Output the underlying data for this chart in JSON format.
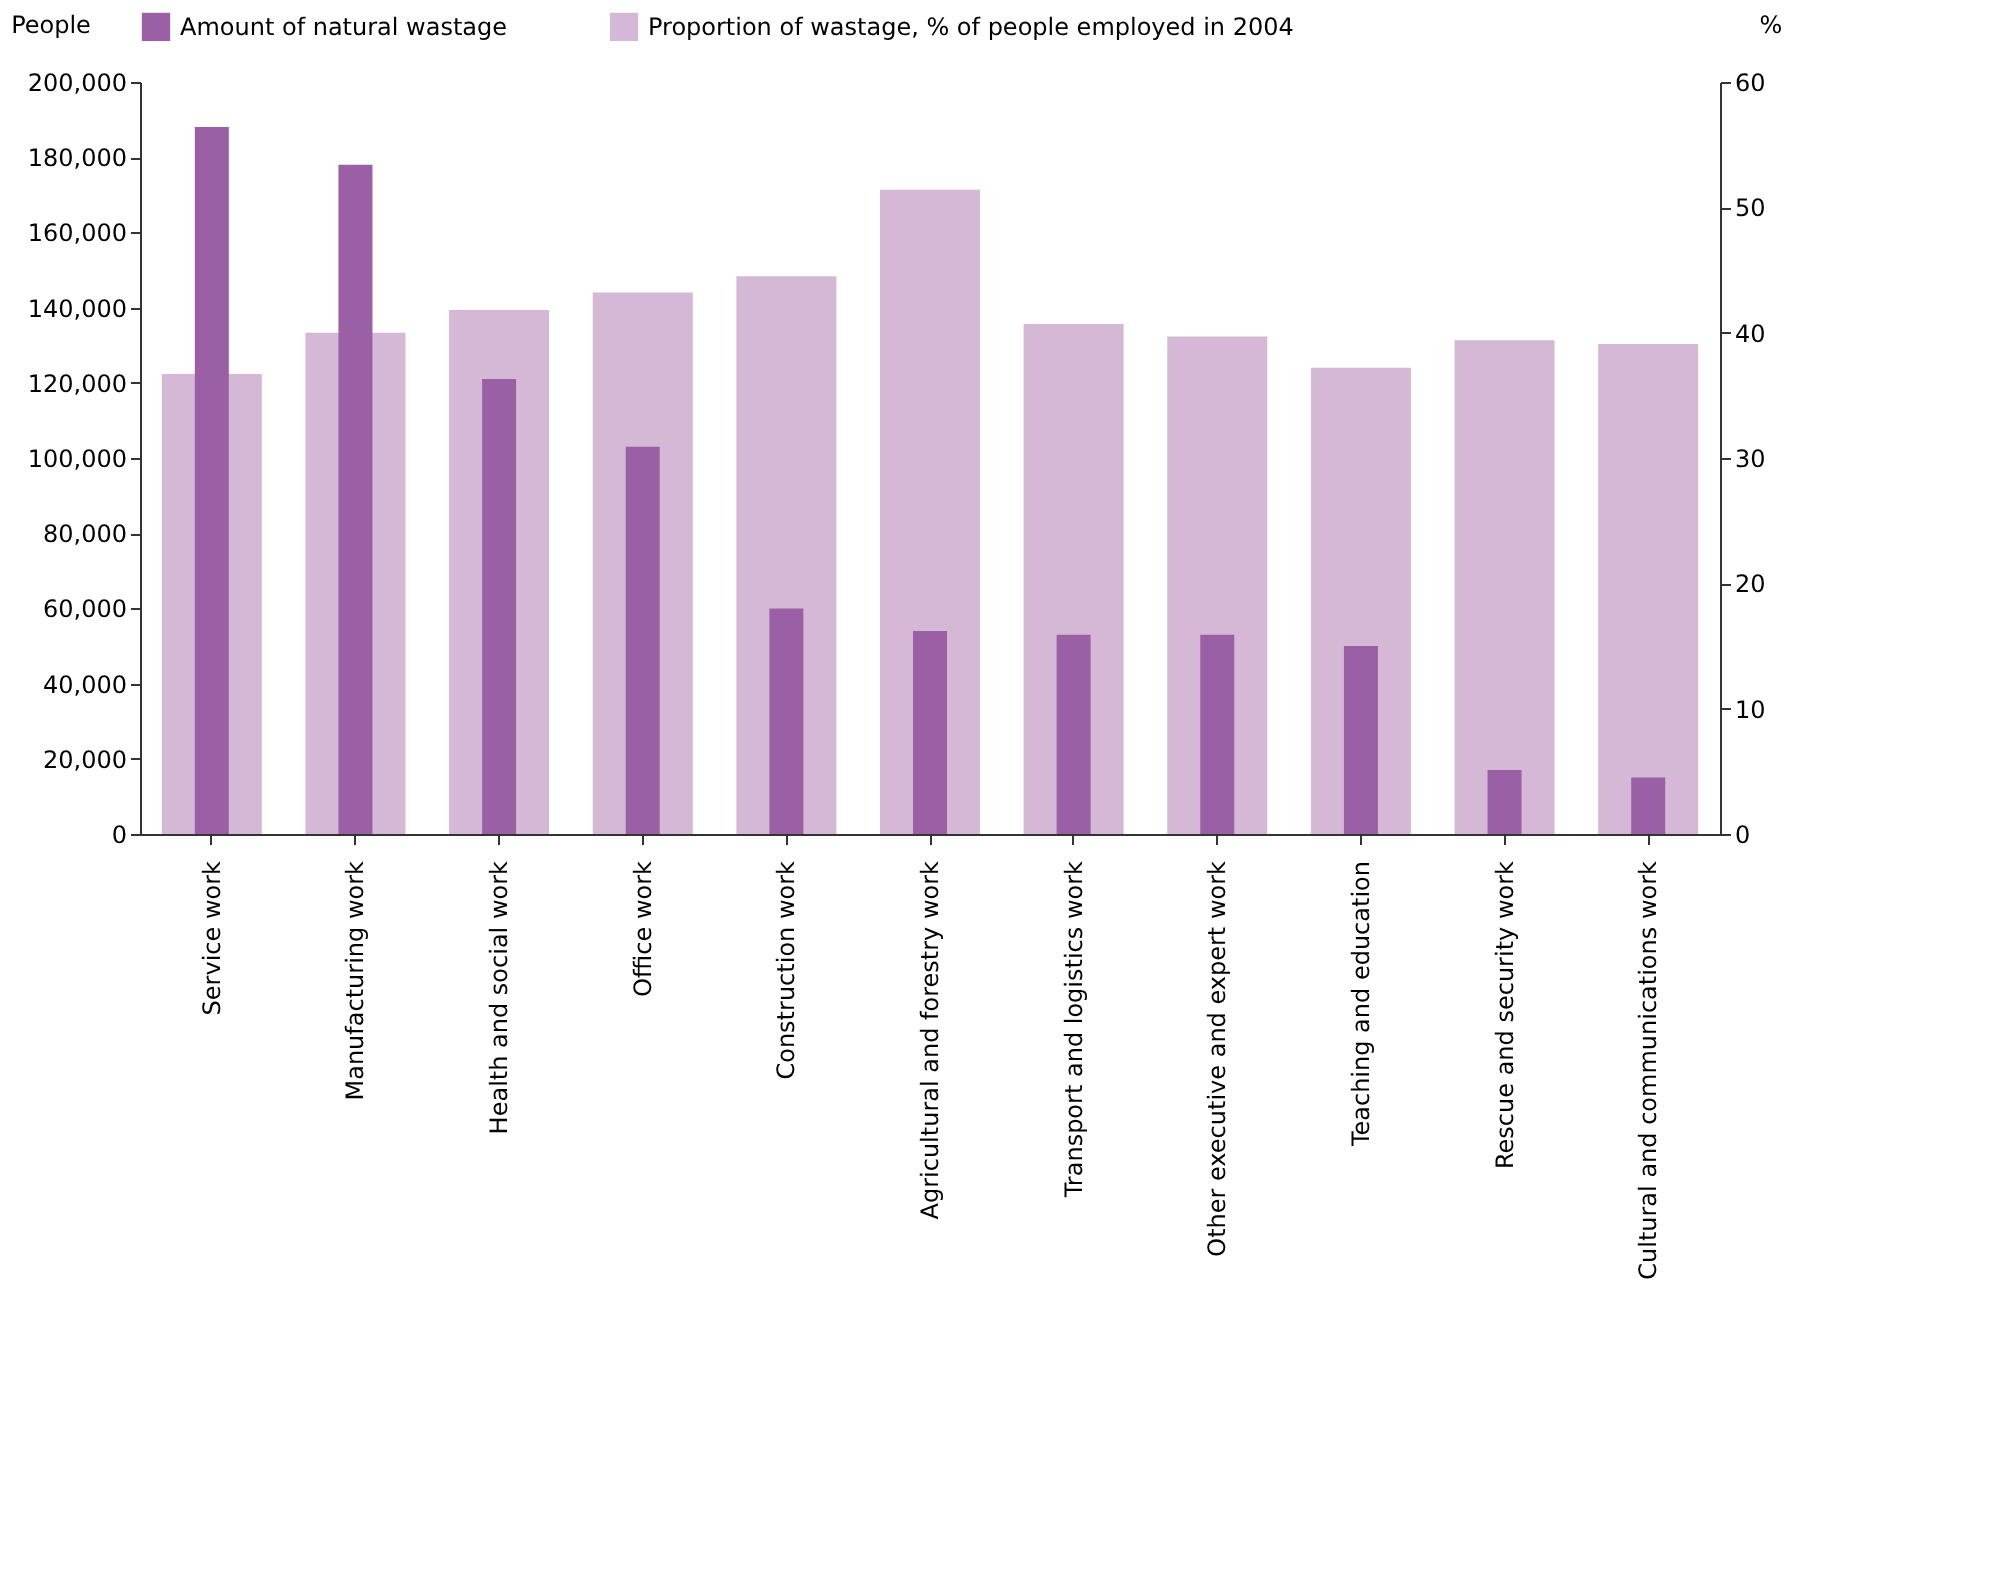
{
  "chart_data": {
    "type": "bar",
    "ylabel": "People",
    "y2label": "%",
    "categories": [
      "Service work",
      "Manufacturing work",
      "Health and social work",
      "Office work",
      "Construction work",
      "Agricultural and forestry work",
      "Transport and logistics work",
      "Other executive and expert work",
      "Teaching and education",
      "Rescue and security work",
      "Cultural and communications work"
    ],
    "series": [
      {
        "name": "Amount of natural wastage",
        "color": "#9b5fa5",
        "values": [
          188000,
          178000,
          121000,
          103000,
          60000,
          54000,
          53000,
          53000,
          50000,
          17000,
          15000
        ]
      },
      {
        "name": "Proportion of wastage, % of people employed in 2004",
        "color": "#d4b8d6",
        "axis": "y2",
        "values": [
          36.7,
          40,
          41.8,
          43.2,
          44.5,
          51.4,
          40.7,
          39.7,
          37.2,
          39.4,
          39.1
        ]
      }
    ],
    "ylim": [
      0,
      200000
    ],
    "yticks": [
      0,
      {
        "value": 20000,
        "label": "20,000"
      },
      {
        "value": 40000,
        "label": "40,000"
      },
      {
        "value": 60000,
        "label": "60,000"
      },
      {
        "value": 80000,
        "label": "80,000"
      },
      {
        "value": 100000,
        "label": "100,000"
      },
      {
        "value": 120000,
        "label": "120,000"
      },
      {
        "value": 140000,
        "label": "140,000"
      },
      {
        "value": 160000,
        "label": "160,000"
      },
      {
        "value": 180000,
        "label": "180,000"
      },
      {
        "value": 200000,
        "label": "200,000"
      }
    ],
    "y2lim": [
      0,
      60
    ],
    "y2ticks": [
      0,
      10,
      20,
      30,
      40,
      50,
      60
    ],
    "grid": false,
    "legend": "top"
  }
}
